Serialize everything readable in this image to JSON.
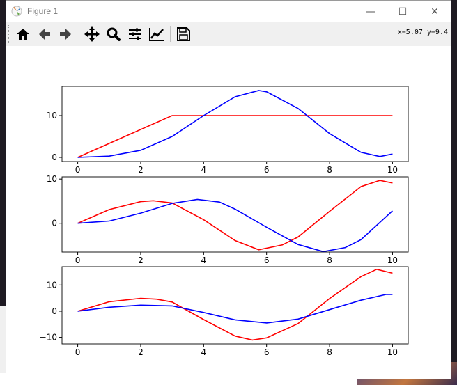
{
  "window": {
    "title": "Figure 1",
    "minimize_glyph": "—",
    "maximize_glyph": "☐",
    "close_glyph": "✕"
  },
  "toolbar": {
    "buttons": [
      {
        "icon": "home-icon",
        "label": "Home"
      },
      {
        "icon": "back-arrow-icon",
        "label": "Back"
      },
      {
        "icon": "forward-arrow-icon",
        "label": "Forward"
      },
      {
        "icon": "pan-icon",
        "label": "Pan"
      },
      {
        "icon": "zoom-icon",
        "label": "Zoom"
      },
      {
        "icon": "subplots-config-icon",
        "label": "Configure subplots"
      },
      {
        "icon": "edit-axes-icon",
        "label": "Edit axis"
      },
      {
        "icon": "save-icon",
        "label": "Save"
      }
    ],
    "coordinates": "x=5.07 y=9.4"
  },
  "colors": {
    "series_red": "#ff0000",
    "series_blue": "#0000ff"
  },
  "chart_data": [
    {
      "type": "line",
      "xlim": [
        -0.5,
        10.5
      ],
      "ylim": [
        -1,
        17
      ],
      "xticks": [
        0,
        2,
        4,
        6,
        8,
        10
      ],
      "yticks": [
        0,
        10
      ],
      "series": [
        {
          "color": "#ff0000",
          "x": [
            0,
            3,
            10
          ],
          "y": [
            0,
            10,
            10
          ]
        },
        {
          "color": "#0000ff",
          "x": [
            0,
            1,
            2,
            3,
            4,
            5,
            5.75,
            6,
            7,
            8,
            9,
            9.6,
            10
          ],
          "y": [
            0,
            0.3,
            1.7,
            5,
            10,
            14.5,
            16,
            15.7,
            11.7,
            5.7,
            1.2,
            0.2,
            0.8
          ]
        }
      ]
    },
    {
      "type": "line",
      "xlim": [
        -0.5,
        10.5
      ],
      "ylim": [
        -6.5,
        10.5
      ],
      "xticks": [
        0,
        2,
        4,
        6,
        8,
        10
      ],
      "yticks": [
        0,
        10
      ],
      "series": [
        {
          "color": "#ff0000",
          "x": [
            0,
            1,
            2,
            2.4,
            3,
            4,
            5,
            5.75,
            6.5,
            7,
            8,
            9,
            9.6,
            10
          ],
          "y": [
            0,
            3.1,
            4.9,
            5.1,
            4.6,
            0.8,
            -3.9,
            -6,
            -4.9,
            -3.1,
            2.7,
            8.3,
            9.7,
            9.1
          ]
        },
        {
          "color": "#0000ff",
          "x": [
            0,
            1,
            2,
            3,
            3.8,
            4.5,
            5,
            6,
            7,
            7.8,
            8.5,
            9,
            10
          ],
          "y": [
            0,
            0.5,
            2.3,
            4.5,
            5.4,
            4.8,
            3.2,
            -0.9,
            -4.8,
            -6.4,
            -5.5,
            -3.7,
            2.8
          ]
        }
      ]
    },
    {
      "type": "line",
      "xlim": [
        -0.5,
        10.5
      ],
      "ylim": [
        -12.5,
        17
      ],
      "xticks": [
        0,
        2,
        4,
        6,
        8,
        10
      ],
      "yticks": [
        -10,
        0,
        10
      ],
      "series": [
        {
          "color": "#ff0000",
          "x": [
            0,
            1,
            2,
            2.5,
            3,
            4,
            5,
            5.55,
            6,
            7,
            8,
            9,
            9.5,
            10
          ],
          "y": [
            0,
            3.6,
            4.9,
            4.6,
            3.5,
            -3.2,
            -9.5,
            -11,
            -10.2,
            -4.7,
            4.8,
            13.2,
            16,
            14.5
          ]
        },
        {
          "color": "#0000ff",
          "x": [
            0,
            1,
            2,
            3,
            4,
            5,
            6,
            7,
            8,
            9,
            9.8,
            10
          ],
          "y": [
            0,
            1.5,
            2.3,
            2,
            -0.5,
            -3.3,
            -4.5,
            -3,
            0.6,
            4.2,
            6.4,
            6.4
          ]
        }
      ]
    }
  ]
}
